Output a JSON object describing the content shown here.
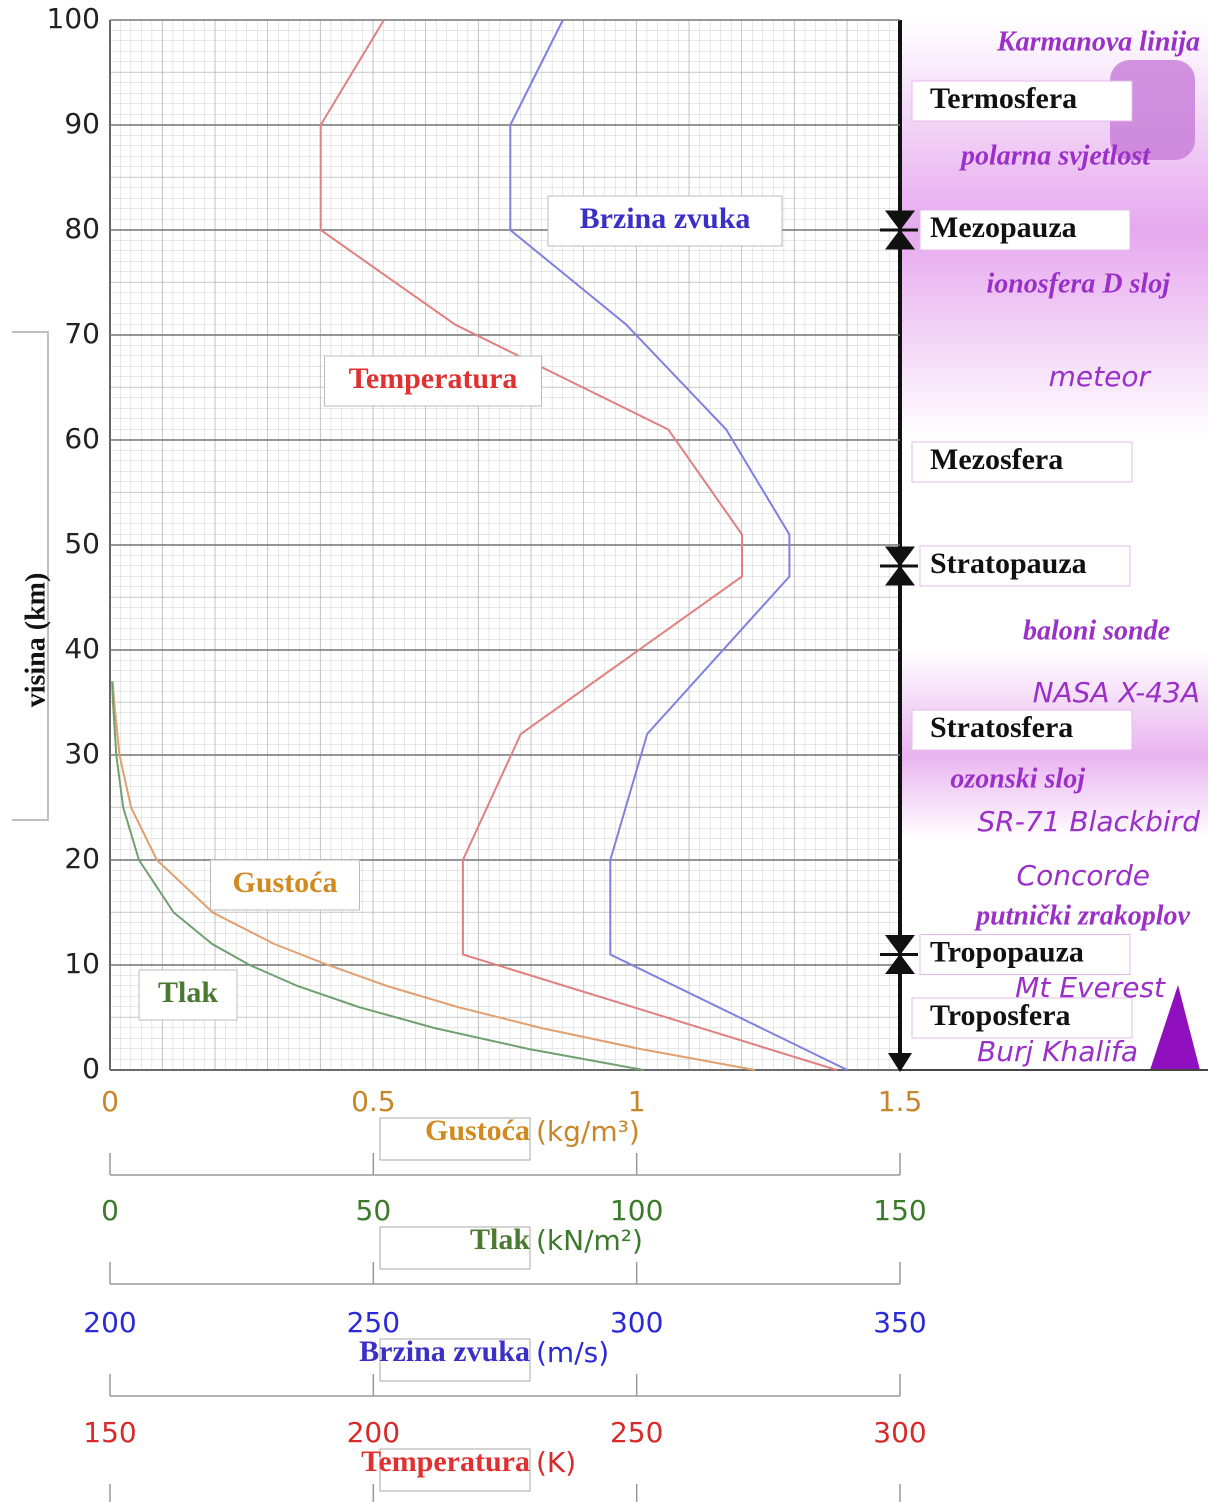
{
  "chart_data": {
    "type": "line",
    "ylabel": "visina (km)",
    "ylim": [
      0,
      100
    ],
    "yticks": [
      0,
      10,
      20,
      30,
      40,
      50,
      60,
      70,
      80,
      90,
      100
    ],
    "grid": true,
    "x_axes": [
      {
        "unit": "(kg/m³)",
        "color": "#c8862a",
        "xlim": [
          0,
          1.5
        ],
        "xticks": [
          0,
          0.5,
          1,
          1.5
        ]
      },
      {
        "unit": "(kN/m²)",
        "color": "#3a7a2a",
        "xlim": [
          0,
          150
        ],
        "xticks": [
          0,
          50,
          100,
          150
        ]
      },
      {
        "unit": "(m/s)",
        "color": "#2a2ad8",
        "xlim": [
          200,
          350
        ],
        "xticks": [
          200,
          250,
          300,
          350
        ]
      },
      {
        "unit": "(K)",
        "color": "#d82a2a",
        "xlim": [
          150,
          300
        ],
        "xticks": [
          150,
          200,
          250,
          300
        ]
      }
    ],
    "series": [
      {
        "name": "Temperatura",
        "color": "#e08080",
        "label_color": "#e03030",
        "axis": 3,
        "altitude": [
          0,
          11,
          20,
          32,
          47,
          51,
          61,
          71,
          80,
          90,
          100
        ],
        "values": [
          288,
          217,
          217,
          228,
          270,
          270,
          256,
          215.5,
          190,
          190,
          202
        ]
      },
      {
        "name": "Brzina zvuka",
        "color": "#8080e0",
        "label_color": "#3a30c8",
        "axis": 2,
        "altitude": [
          0,
          11,
          20,
          32,
          47,
          51,
          61,
          71,
          80,
          90,
          100
        ],
        "values": [
          340,
          295,
          295,
          302,
          329,
          329,
          317,
          298,
          276,
          276,
          286
        ]
      },
      {
        "name": "Gustoća",
        "color": "#e0a070",
        "label_color": "#d08a20",
        "axis": 0,
        "altitude": [
          0,
          2,
          4,
          6,
          8,
          10,
          12,
          15,
          20,
          25,
          30,
          35,
          37
        ],
        "values": [
          1.225,
          1.007,
          0.819,
          0.66,
          0.526,
          0.414,
          0.312,
          0.195,
          0.089,
          0.04,
          0.018,
          0.008,
          0.005
        ]
      },
      {
        "name": "Tlak",
        "color": "#70a070",
        "label_color": "#4a7a30",
        "axis": 1,
        "altitude": [
          0,
          2,
          4,
          6,
          8,
          10,
          12,
          15,
          20,
          25,
          30,
          35,
          37
        ],
        "values": [
          101.3,
          79.5,
          61.6,
          47.2,
          35.6,
          26.5,
          19.4,
          12.1,
          5.5,
          2.5,
          1.2,
          0.57,
          0.4
        ]
      }
    ],
    "boundaries": [
      {
        "name": "Mezopauza",
        "altitude": 80
      },
      {
        "name": "Stratopauza",
        "altitude": 48
      },
      {
        "name": "Tropopauza",
        "altitude": 11
      }
    ],
    "layers": [
      "Termosfera",
      "Mezosfera",
      "Stratosfera",
      "Troposfera"
    ],
    "objects": [
      "Karmanova linija",
      "polarna svjetlost",
      "ionosfera D sloj",
      "meteor",
      "baloni sonde",
      "NASA X-43A",
      "ozonski sloj",
      "SR-71 Blackbird",
      "Concorde",
      "putnički zrakoplov",
      "Mt Everest",
      "Burj Khalifa"
    ]
  }
}
